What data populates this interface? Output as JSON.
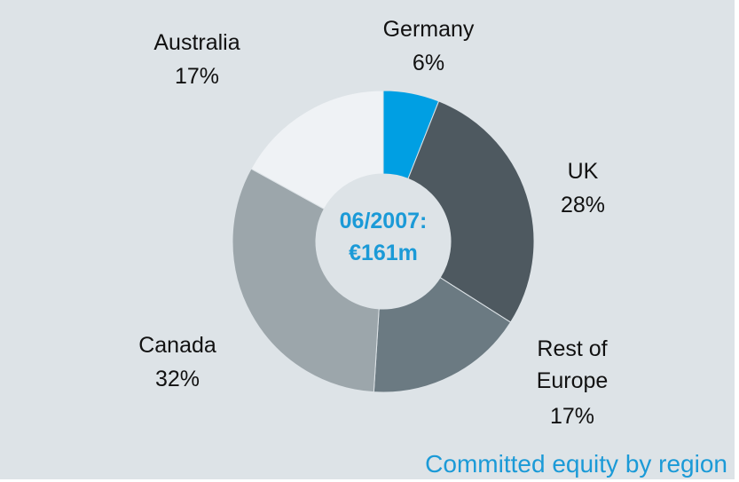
{
  "chart_data": {
    "type": "donut",
    "title": "Committed equity by region",
    "center_label": [
      "06/2007:",
      "€161m"
    ],
    "categories": [
      "Germany",
      "UK",
      "Rest of Europe",
      "Canada",
      "Australia"
    ],
    "values": [
      6,
      28,
      17,
      32,
      17
    ],
    "value_labels": [
      "6%",
      "28%",
      "17%",
      "32%",
      "17%"
    ],
    "colors": [
      "#009fe3",
      "#4e5960",
      "#6b7a82",
      "#9ca6ab",
      "#eff2f5"
    ]
  }
}
